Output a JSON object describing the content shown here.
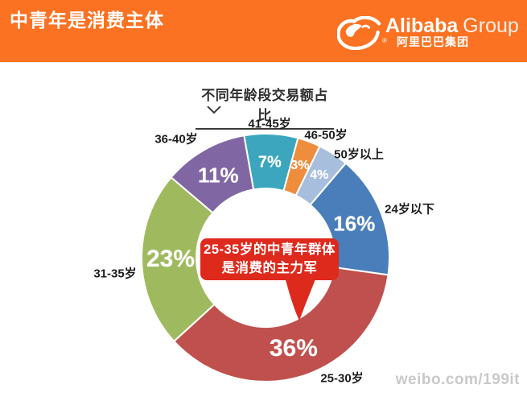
{
  "header": {
    "title": "中青年是消费主体",
    "background_color": "#FB7222",
    "logo": {
      "brand": "Alibaba",
      "brand_suffix": "Group",
      "registered_mark": "®",
      "chinese_name": "阿里巴巴集团"
    }
  },
  "chart": {
    "title": "不同年龄段交易额占比",
    "callout": {
      "line1": "25-35岁的中青年群体",
      "line2": "是消费的主力军",
      "color": "#DE2A1C"
    },
    "watermark": "weibo.com/199it"
  },
  "chart_data": {
    "type": "pie",
    "subtype": "donut",
    "title": "不同年龄段交易额占比",
    "unit": "%",
    "direction": "clockwise",
    "start_angle_deg": -10,
    "segments": [
      {
        "label": "41-45岁",
        "value": 7,
        "color": "#3BA6BE"
      },
      {
        "label": "46-50岁",
        "value": 3,
        "color": "#EE8D3B"
      },
      {
        "label": "50岁以上",
        "value": 4,
        "color": "#A7BFDC"
      },
      {
        "label": "24岁以下",
        "value": 16,
        "color": "#4A7EBB"
      },
      {
        "label": "25-30岁",
        "value": 36,
        "color": "#C0504D"
      },
      {
        "label": "31-35岁",
        "value": 23,
        "color": "#9FBA5E"
      },
      {
        "label": "36-40岁",
        "value": 11,
        "color": "#8166A4"
      }
    ],
    "annotation": "25-35岁的中青年群体是消费的主力军",
    "legend": "none",
    "labels": "outside category names, inside percentage values"
  }
}
